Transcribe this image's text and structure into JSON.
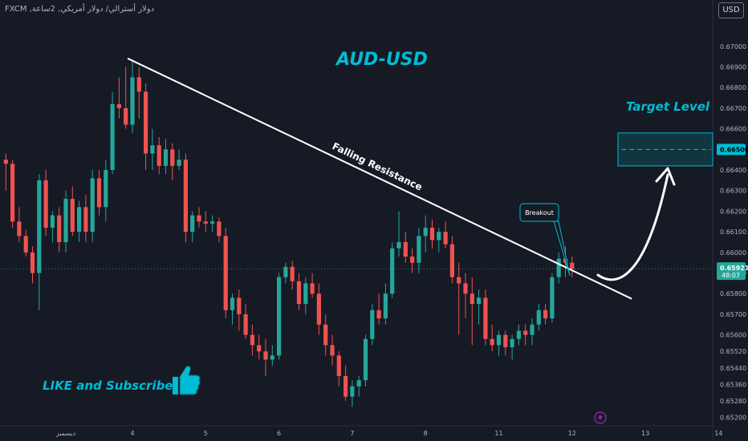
{
  "header": {
    "symbol_title": "FXCM ,دولار أسترالي/ دولار أمريكي, 2ساعة",
    "currency_button": "USD"
  },
  "colors": {
    "background": "#161a25",
    "bull": "#26a69a",
    "bear": "#ef5350",
    "accent": "#00bcd4",
    "text": "#b2b5be"
  },
  "chart_data": {
    "type": "candlestick",
    "title": "AUD-USD",
    "ylim": [
      0.6519,
      0.6705
    ],
    "y_ticks": [
      "0.67000",
      "0.66900",
      "0.66800",
      "0.66700",
      "0.66600",
      "0.66500",
      "0.66400",
      "0.66300",
      "0.66200",
      "0.66100",
      "0.66000",
      "0.65900",
      "0.65800",
      "0.65700",
      "0.65600",
      "0.65520",
      "0.65440",
      "0.65360",
      "0.65280",
      "0.65200"
    ],
    "x_ticks": [
      {
        "label": "ديسمبر",
        "index": 9
      },
      {
        "label": "4",
        "index": 19
      },
      {
        "label": "5",
        "index": 30
      },
      {
        "label": "6",
        "index": 41
      },
      {
        "label": "7",
        "index": 52
      },
      {
        "label": "8",
        "index": 63
      },
      {
        "label": "11",
        "index": 74
      },
      {
        "label": "12",
        "index": 85
      },
      {
        "label": "13",
        "index": 96
      },
      {
        "label": "14",
        "index": 107
      }
    ],
    "candles": [
      {
        "o": 0.6645,
        "h": 0.6648,
        "l": 0.663,
        "c": 0.6643
      },
      {
        "o": 0.6643,
        "h": 0.6645,
        "l": 0.6612,
        "c": 0.6615
      },
      {
        "o": 0.6615,
        "h": 0.6622,
        "l": 0.6605,
        "c": 0.6608
      },
      {
        "o": 0.6608,
        "h": 0.6611,
        "l": 0.6598,
        "c": 0.66
      },
      {
        "o": 0.66,
        "h": 0.6603,
        "l": 0.6585,
        "c": 0.659
      },
      {
        "o": 0.659,
        "h": 0.6638,
        "l": 0.6572,
        "c": 0.6635
      },
      {
        "o": 0.6635,
        "h": 0.664,
        "l": 0.6608,
        "c": 0.6612
      },
      {
        "o": 0.6612,
        "h": 0.662,
        "l": 0.6605,
        "c": 0.6618
      },
      {
        "o": 0.6618,
        "h": 0.6622,
        "l": 0.66,
        "c": 0.6605
      },
      {
        "o": 0.6605,
        "h": 0.663,
        "l": 0.66,
        "c": 0.6626
      },
      {
        "o": 0.6626,
        "h": 0.6632,
        "l": 0.6608,
        "c": 0.661
      },
      {
        "o": 0.661,
        "h": 0.6625,
        "l": 0.6605,
        "c": 0.6622
      },
      {
        "o": 0.6622,
        "h": 0.6628,
        "l": 0.6605,
        "c": 0.661
      },
      {
        "o": 0.661,
        "h": 0.664,
        "l": 0.6605,
        "c": 0.6636
      },
      {
        "o": 0.6636,
        "h": 0.664,
        "l": 0.6618,
        "c": 0.6622
      },
      {
        "o": 0.6622,
        "h": 0.6645,
        "l": 0.6615,
        "c": 0.664
      },
      {
        "o": 0.664,
        "h": 0.6678,
        "l": 0.6638,
        "c": 0.6672
      },
      {
        "o": 0.6672,
        "h": 0.6685,
        "l": 0.6665,
        "c": 0.667
      },
      {
        "o": 0.667,
        "h": 0.669,
        "l": 0.666,
        "c": 0.6662
      },
      {
        "o": 0.6662,
        "h": 0.6693,
        "l": 0.6658,
        "c": 0.6685
      },
      {
        "o": 0.6685,
        "h": 0.669,
        "l": 0.6665,
        "c": 0.6678
      },
      {
        "o": 0.6678,
        "h": 0.6682,
        "l": 0.664,
        "c": 0.6648
      },
      {
        "o": 0.6648,
        "h": 0.666,
        "l": 0.664,
        "c": 0.6652
      },
      {
        "o": 0.6652,
        "h": 0.6656,
        "l": 0.6638,
        "c": 0.6642
      },
      {
        "o": 0.6642,
        "h": 0.6655,
        "l": 0.6638,
        "c": 0.665
      },
      {
        "o": 0.665,
        "h": 0.6653,
        "l": 0.6635,
        "c": 0.6642
      },
      {
        "o": 0.6642,
        "h": 0.665,
        "l": 0.664,
        "c": 0.6645
      },
      {
        "o": 0.6645,
        "h": 0.6648,
        "l": 0.6605,
        "c": 0.661
      },
      {
        "o": 0.661,
        "h": 0.662,
        "l": 0.6605,
        "c": 0.6618
      },
      {
        "o": 0.6618,
        "h": 0.6622,
        "l": 0.6612,
        "c": 0.6615
      },
      {
        "o": 0.6615,
        "h": 0.662,
        "l": 0.661,
        "c": 0.6614
      },
      {
        "o": 0.6614,
        "h": 0.6618,
        "l": 0.661,
        "c": 0.6615
      },
      {
        "o": 0.6615,
        "h": 0.6617,
        "l": 0.6605,
        "c": 0.6608
      },
      {
        "o": 0.6608,
        "h": 0.6612,
        "l": 0.6568,
        "c": 0.6572
      },
      {
        "o": 0.6572,
        "h": 0.658,
        "l": 0.6565,
        "c": 0.6578
      },
      {
        "o": 0.6578,
        "h": 0.6582,
        "l": 0.6562,
        "c": 0.657
      },
      {
        "o": 0.657,
        "h": 0.6575,
        "l": 0.6558,
        "c": 0.656
      },
      {
        "o": 0.656,
        "h": 0.6565,
        "l": 0.655,
        "c": 0.6555
      },
      {
        "o": 0.6555,
        "h": 0.656,
        "l": 0.6548,
        "c": 0.6552
      },
      {
        "o": 0.6552,
        "h": 0.6558,
        "l": 0.654,
        "c": 0.6548
      },
      {
        "o": 0.6548,
        "h": 0.6555,
        "l": 0.6545,
        "c": 0.655
      },
      {
        "o": 0.655,
        "h": 0.659,
        "l": 0.6548,
        "c": 0.6588
      },
      {
        "o": 0.6588,
        "h": 0.6595,
        "l": 0.6585,
        "c": 0.6593
      },
      {
        "o": 0.6593,
        "h": 0.6596,
        "l": 0.6582,
        "c": 0.6586
      },
      {
        "o": 0.6586,
        "h": 0.659,
        "l": 0.6572,
        "c": 0.6575
      },
      {
        "o": 0.6575,
        "h": 0.6588,
        "l": 0.657,
        "c": 0.6585
      },
      {
        "o": 0.6585,
        "h": 0.659,
        "l": 0.6578,
        "c": 0.658
      },
      {
        "o": 0.658,
        "h": 0.6585,
        "l": 0.656,
        "c": 0.6565
      },
      {
        "o": 0.6565,
        "h": 0.657,
        "l": 0.655,
        "c": 0.6555
      },
      {
        "o": 0.6555,
        "h": 0.656,
        "l": 0.6545,
        "c": 0.655
      },
      {
        "o": 0.655,
        "h": 0.6552,
        "l": 0.6535,
        "c": 0.654
      },
      {
        "o": 0.654,
        "h": 0.6545,
        "l": 0.6528,
        "c": 0.653
      },
      {
        "o": 0.653,
        "h": 0.6538,
        "l": 0.6525,
        "c": 0.6535
      },
      {
        "o": 0.6535,
        "h": 0.654,
        "l": 0.653,
        "c": 0.6538
      },
      {
        "o": 0.6538,
        "h": 0.656,
        "l": 0.6535,
        "c": 0.6558
      },
      {
        "o": 0.6558,
        "h": 0.6575,
        "l": 0.6555,
        "c": 0.6572
      },
      {
        "o": 0.6572,
        "h": 0.658,
        "l": 0.6565,
        "c": 0.6568
      },
      {
        "o": 0.6568,
        "h": 0.6585,
        "l": 0.6565,
        "c": 0.658
      },
      {
        "o": 0.658,
        "h": 0.6605,
        "l": 0.6578,
        "c": 0.6602
      },
      {
        "o": 0.6602,
        "h": 0.662,
        "l": 0.6598,
        "c": 0.6605
      },
      {
        "o": 0.6605,
        "h": 0.661,
        "l": 0.6595,
        "c": 0.6598
      },
      {
        "o": 0.6598,
        "h": 0.6602,
        "l": 0.659,
        "c": 0.6595
      },
      {
        "o": 0.6595,
        "h": 0.6612,
        "l": 0.659,
        "c": 0.6608
      },
      {
        "o": 0.6608,
        "h": 0.6618,
        "l": 0.66,
        "c": 0.6612
      },
      {
        "o": 0.6612,
        "h": 0.6616,
        "l": 0.6602,
        "c": 0.6606
      },
      {
        "o": 0.6606,
        "h": 0.6612,
        "l": 0.66,
        "c": 0.661
      },
      {
        "o": 0.661,
        "h": 0.6615,
        "l": 0.6602,
        "c": 0.6604
      },
      {
        "o": 0.6604,
        "h": 0.6608,
        "l": 0.6585,
        "c": 0.6588
      },
      {
        "o": 0.6588,
        "h": 0.6595,
        "l": 0.656,
        "c": 0.6585
      },
      {
        "o": 0.6585,
        "h": 0.659,
        "l": 0.6568,
        "c": 0.658
      },
      {
        "o": 0.658,
        "h": 0.6588,
        "l": 0.6555,
        "c": 0.6575
      },
      {
        "o": 0.6575,
        "h": 0.6582,
        "l": 0.6565,
        "c": 0.6578
      },
      {
        "o": 0.6578,
        "h": 0.6582,
        "l": 0.6555,
        "c": 0.6558
      },
      {
        "o": 0.6558,
        "h": 0.6565,
        "l": 0.6552,
        "c": 0.6555
      },
      {
        "o": 0.6555,
        "h": 0.6562,
        "l": 0.655,
        "c": 0.656
      },
      {
        "o": 0.656,
        "h": 0.6562,
        "l": 0.655,
        "c": 0.6554
      },
      {
        "o": 0.6554,
        "h": 0.656,
        "l": 0.6548,
        "c": 0.6558
      },
      {
        "o": 0.6558,
        "h": 0.6565,
        "l": 0.6555,
        "c": 0.6562
      },
      {
        "o": 0.6562,
        "h": 0.6565,
        "l": 0.6555,
        "c": 0.656
      },
      {
        "o": 0.656,
        "h": 0.6568,
        "l": 0.6555,
        "c": 0.6565
      },
      {
        "o": 0.6565,
        "h": 0.6575,
        "l": 0.6562,
        "c": 0.6572
      },
      {
        "o": 0.6572,
        "h": 0.6575,
        "l": 0.6565,
        "c": 0.6568
      },
      {
        "o": 0.6568,
        "h": 0.659,
        "l": 0.6566,
        "c": 0.6588
      },
      {
        "o": 0.6588,
        "h": 0.66,
        "l": 0.6585,
        "c": 0.6597
      },
      {
        "o": 0.6597,
        "h": 0.6603,
        "l": 0.6588,
        "c": 0.6595
      },
      {
        "o": 0.6595,
        "h": 0.6598,
        "l": 0.6588,
        "c": 0.6592
      }
    ],
    "current_price": {
      "value": 0.65921,
      "label": "0.65921",
      "countdown": "48:07"
    },
    "target_price": {
      "value": 0.665,
      "label": "0.66500"
    },
    "annotations": {
      "pair_label": "AUD-USD",
      "trendline_label": "Falling Resistance",
      "breakout_label": "Breakout",
      "target_label": "Target Level",
      "cta_text": "LIKE and Subscribe"
    },
    "trendline": {
      "start": {
        "index": 19,
        "price": 0.6693
      },
      "end": {
        "index": 93,
        "price": 0.6581
      }
    },
    "target_zone": {
      "top": 0.6658,
      "bottom": 0.6642,
      "mid": 0.665
    },
    "grid": false
  }
}
